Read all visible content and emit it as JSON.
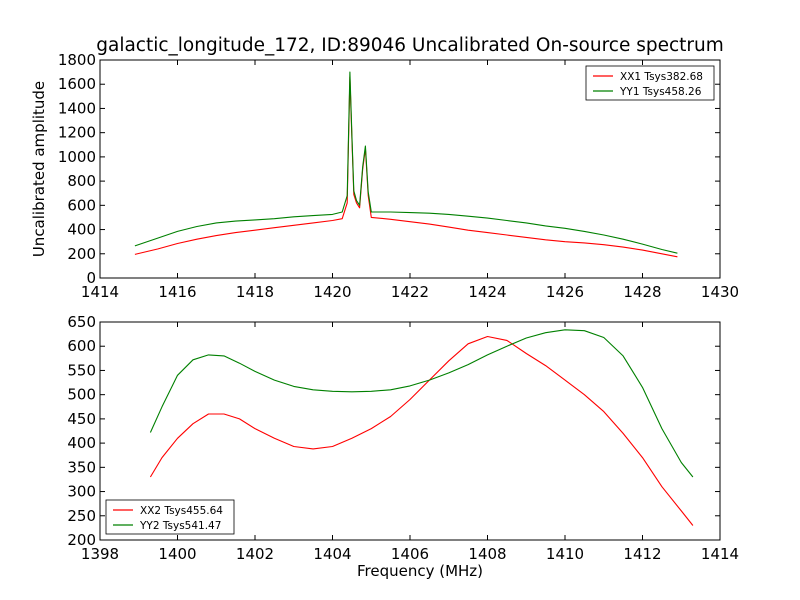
{
  "chart_data": [
    {
      "type": "line",
      "title": "galactic_longitude_172, ID:89046 Uncalibrated On-source spectrum",
      "xlabel": "",
      "ylabel": "Uncalibrated amplitude",
      "xlim": [
        1414,
        1430
      ],
      "ylim": [
        0,
        1800
      ],
      "xticks": [
        1414,
        1416,
        1418,
        1420,
        1422,
        1424,
        1426,
        1428,
        1430
      ],
      "yticks": [
        0,
        200,
        400,
        600,
        800,
        1000,
        1200,
        1400,
        1600,
        1800
      ],
      "legend_position": "top-right",
      "grid": false,
      "series": [
        {
          "name": "XX1 Tsys382.68",
          "color": "#ff0000",
          "x": [
            1414.9,
            1415.5,
            1416.0,
            1416.5,
            1417.0,
            1417.5,
            1418.0,
            1418.5,
            1419.0,
            1419.5,
            1420.0,
            1420.25,
            1420.38,
            1420.45,
            1420.5,
            1420.55,
            1420.62,
            1420.7,
            1420.78,
            1420.85,
            1420.92,
            1421.0,
            1421.5,
            1422.0,
            1422.5,
            1423.0,
            1423.5,
            1424.0,
            1424.5,
            1425.0,
            1425.5,
            1426.0,
            1426.5,
            1427.0,
            1427.5,
            1428.0,
            1428.5,
            1428.9
          ],
          "y": [
            195,
            240,
            285,
            320,
            350,
            375,
            395,
            415,
            435,
            455,
            475,
            490,
            620,
            1660,
            1150,
            690,
            620,
            580,
            900,
            1070,
            680,
            500,
            485,
            465,
            445,
            420,
            395,
            375,
            355,
            335,
            315,
            300,
            290,
            275,
            255,
            230,
            200,
            175
          ]
        },
        {
          "name": "YY1 Tsys458.26",
          "color": "#008000",
          "x": [
            1414.9,
            1415.5,
            1416.0,
            1416.5,
            1417.0,
            1417.5,
            1418.0,
            1418.5,
            1419.0,
            1419.5,
            1420.0,
            1420.25,
            1420.38,
            1420.45,
            1420.5,
            1420.55,
            1420.62,
            1420.7,
            1420.78,
            1420.85,
            1420.92,
            1421.0,
            1421.5,
            1422.0,
            1422.5,
            1423.0,
            1423.5,
            1424.0,
            1424.5,
            1425.0,
            1425.5,
            1426.0,
            1426.5,
            1427.0,
            1427.5,
            1428.0,
            1428.5,
            1428.9
          ],
          "y": [
            265,
            330,
            385,
            425,
            455,
            470,
            480,
            490,
            505,
            515,
            525,
            545,
            680,
            1700,
            1180,
            720,
            640,
            600,
            920,
            1090,
            710,
            545,
            545,
            540,
            535,
            525,
            510,
            495,
            475,
            455,
            430,
            410,
            385,
            355,
            320,
            280,
            235,
            205
          ]
        }
      ]
    },
    {
      "type": "line",
      "title": "",
      "xlabel": "Frequency (MHz)",
      "ylabel": "",
      "xlim": [
        1398,
        1414
      ],
      "ylim": [
        200,
        650
      ],
      "xticks": [
        1398,
        1400,
        1402,
        1404,
        1406,
        1408,
        1410,
        1412,
        1414
      ],
      "yticks": [
        200,
        250,
        300,
        350,
        400,
        450,
        500,
        550,
        600,
        650
      ],
      "legend_position": "bottom-left",
      "grid": false,
      "series": [
        {
          "name": "XX2 Tsys455.64",
          "color": "#ff0000",
          "x": [
            1399.3,
            1399.6,
            1400.0,
            1400.4,
            1400.8,
            1401.2,
            1401.6,
            1402.0,
            1402.5,
            1403.0,
            1403.5,
            1404.0,
            1404.5,
            1405.0,
            1405.5,
            1406.0,
            1406.5,
            1407.0,
            1407.5,
            1408.0,
            1408.5,
            1409.0,
            1409.5,
            1410.0,
            1410.5,
            1411.0,
            1411.5,
            1412.0,
            1412.5,
            1413.0,
            1413.3
          ],
          "y": [
            330,
            370,
            410,
            440,
            460,
            460,
            450,
            430,
            410,
            393,
            388,
            393,
            410,
            430,
            455,
            490,
            530,
            570,
            605,
            620,
            612,
            585,
            560,
            530,
            500,
            465,
            420,
            370,
            310,
            260,
            230
          ]
        },
        {
          "name": "YY2 Tsys541.47",
          "color": "#008000",
          "x": [
            1399.3,
            1399.6,
            1400.0,
            1400.4,
            1400.8,
            1401.2,
            1401.6,
            1402.0,
            1402.5,
            1403.0,
            1403.5,
            1404.0,
            1404.5,
            1405.0,
            1405.5,
            1406.0,
            1406.5,
            1407.0,
            1407.5,
            1408.0,
            1408.5,
            1409.0,
            1409.5,
            1410.0,
            1410.5,
            1411.0,
            1411.5,
            1412.0,
            1412.5,
            1413.0,
            1413.3
          ],
          "y": [
            422,
            475,
            540,
            572,
            582,
            580,
            565,
            548,
            530,
            517,
            510,
            507,
            506,
            507,
            510,
            518,
            530,
            545,
            562,
            582,
            600,
            617,
            628,
            634,
            632,
            618,
            580,
            515,
            430,
            360,
            330
          ]
        }
      ]
    }
  ]
}
